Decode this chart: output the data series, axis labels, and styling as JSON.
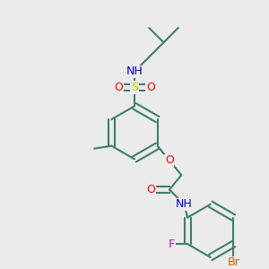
{
  "background_color": "#ebebeb",
  "bond_color": "#3d7d6e",
  "bond_width": 1.5,
  "atom_colors": {
    "N": "#0000cc",
    "O": "#ff0000",
    "S": "#cccc00",
    "Br": "#cc6600",
    "F": "#cc00cc",
    "C": "#3d7d6e",
    "H": "#808080"
  },
  "font_size": 9,
  "font_size_small": 8
}
